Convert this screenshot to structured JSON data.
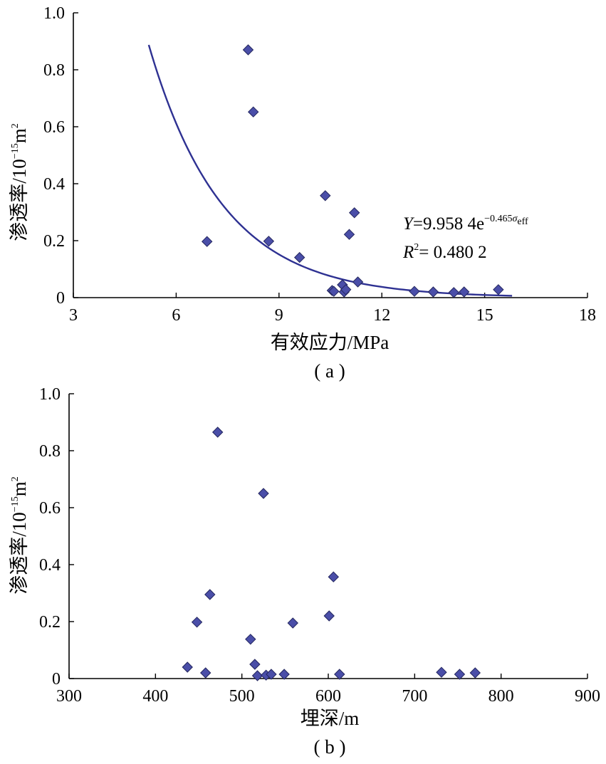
{
  "chart_data": [
    {
      "type": "scatter",
      "caption": "( a )",
      "xlabel": "有效应力/MPa",
      "ylabel_main": "渗透率/10",
      "ylabel_sup": "−15",
      "ylabel_unit": "m",
      "ylabel_unit_sup": "2",
      "xlim": [
        3,
        18
      ],
      "ylim": [
        0,
        1.0
      ],
      "xticks": [
        3,
        6,
        9,
        12,
        15,
        18
      ],
      "xtick_labels": [
        "3",
        "6",
        "9",
        "12",
        "15",
        "18"
      ],
      "yticks": [
        0,
        0.2,
        0.4,
        0.6,
        0.8,
        1.0
      ],
      "ytick_labels": [
        "0",
        "0.2",
        "0.4",
        "0.6",
        "0.8",
        "1.0"
      ],
      "marker_color": "#4a4ea8",
      "curve_color": "#2e3192",
      "points": [
        [
          6.9,
          0.197
        ],
        [
          8.1,
          0.87
        ],
        [
          8.25,
          0.652
        ],
        [
          8.7,
          0.198
        ],
        [
          9.6,
          0.141
        ],
        [
          10.35,
          0.358
        ],
        [
          10.55,
          0.025
        ],
        [
          10.6,
          0.022
        ],
        [
          10.85,
          0.045
        ],
        [
          10.9,
          0.02
        ],
        [
          10.95,
          0.028
        ],
        [
          11.05,
          0.222
        ],
        [
          11.2,
          0.298
        ],
        [
          11.3,
          0.055
        ],
        [
          12.95,
          0.022
        ],
        [
          13.5,
          0.02
        ],
        [
          14.1,
          0.018
        ],
        [
          14.4,
          0.02
        ],
        [
          15.4,
          0.028
        ]
      ],
      "fit": {
        "a": 9.9584,
        "b": -0.465,
        "x_range": [
          5.2,
          15.8
        ],
        "eq_var": "Y",
        "eq_text": "=9.958 4e",
        "eq_exp": "−0.465",
        "eq_sigma": "σ",
        "eq_sub": "eff",
        "r2_var": "R",
        "r2_sup": "2",
        "r2_text": "= 0.480 2"
      }
    },
    {
      "type": "scatter",
      "caption": "( b )",
      "xlabel": "埋深/m",
      "ylabel_main": "渗透率/10",
      "ylabel_sup": "−15",
      "ylabel_unit": "m",
      "ylabel_unit_sup": "2",
      "xlim": [
        300,
        900
      ],
      "ylim": [
        0,
        1.0
      ],
      "xticks": [
        300,
        400,
        500,
        600,
        700,
        800,
        900
      ],
      "xtick_labels": [
        "300",
        "400",
        "500",
        "600",
        "700",
        "800",
        "900"
      ],
      "yticks": [
        0,
        0.2,
        0.4,
        0.6,
        0.8,
        1.0
      ],
      "ytick_labels": [
        "0",
        "0.2",
        "0.4",
        "0.6",
        "0.8",
        "1.0"
      ],
      "marker_color": "#4a4ea8",
      "points": [
        [
          437,
          0.04
        ],
        [
          448,
          0.198
        ],
        [
          458,
          0.02
        ],
        [
          463,
          0.295
        ],
        [
          472,
          0.865
        ],
        [
          510,
          0.138
        ],
        [
          515,
          0.05
        ],
        [
          518,
          0.01
        ],
        [
          525,
          0.65
        ],
        [
          528,
          0.012
        ],
        [
          534,
          0.015
        ],
        [
          549,
          0.015
        ],
        [
          559,
          0.195
        ],
        [
          601,
          0.22
        ],
        [
          606,
          0.357
        ],
        [
          613,
          0.015
        ],
        [
          731,
          0.022
        ],
        [
          752,
          0.015
        ],
        [
          770,
          0.02
        ]
      ]
    }
  ]
}
